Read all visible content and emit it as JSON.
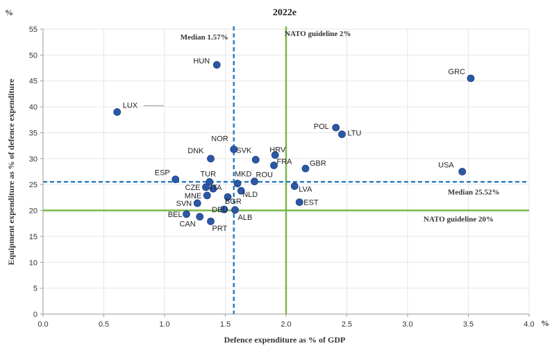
{
  "chart_data": {
    "type": "scatter",
    "title": "2022e",
    "xlabel": "Defence expenditure as % of GDP",
    "ylabel": "Equipment expenditure as % of defence expenditure",
    "x_unit": "%",
    "y_unit": "%",
    "xlim": [
      0,
      4
    ],
    "ylim": [
      0,
      55
    ],
    "x_ticks": [
      "0.0",
      "0.5",
      "1.0",
      "1.5",
      "2.0",
      "2.5",
      "3.0",
      "3.5",
      "4.0"
    ],
    "y_ticks": [
      "0",
      "5",
      "10",
      "15",
      "20",
      "25",
      "30",
      "35",
      "40",
      "45",
      "50",
      "55"
    ],
    "grid": true,
    "colors": {
      "points": "#2b58a6",
      "median": "#2e7fc1",
      "nato": "#7ab648"
    },
    "reference_lines": [
      {
        "orientation": "vertical",
        "value": 1.57,
        "label": "Median 1.57%",
        "style": "dashed"
      },
      {
        "orientation": "vertical",
        "value": 2.0,
        "label": "NATO guideline 2%",
        "style": "solid"
      },
      {
        "orientation": "horizontal",
        "value": 25.52,
        "label": "Median 25.52%",
        "style": "dashed"
      },
      {
        "orientation": "horizontal",
        "value": 20,
        "label": "NATO guideline 20%",
        "style": "solid"
      }
    ],
    "points": [
      {
        "label": "HUN",
        "x": 1.43,
        "y": 48.1
      },
      {
        "label": "GRC",
        "x": 3.52,
        "y": 45.5
      },
      {
        "label": "LUX",
        "x": 0.61,
        "y": 39.0
      },
      {
        "label": "POL",
        "x": 2.41,
        "y": 36.0
      },
      {
        "label": "LTU",
        "x": 2.46,
        "y": 34.7
      },
      {
        "label": "NOR",
        "x": 1.57,
        "y": 31.8
      },
      {
        "label": "DNK",
        "x": 1.38,
        "y": 30.0
      },
      {
        "label": "SVK",
        "x": 1.75,
        "y": 29.8
      },
      {
        "label": "HRV",
        "x": 1.91,
        "y": 30.7
      },
      {
        "label": "FRA",
        "x": 1.9,
        "y": 28.7
      },
      {
        "label": "GBR",
        "x": 2.16,
        "y": 28.1
      },
      {
        "label": "USA",
        "x": 3.45,
        "y": 27.5
      },
      {
        "label": "ESP",
        "x": 1.09,
        "y": 26.0
      },
      {
        "label": "TUR",
        "x": 1.37,
        "y": 25.5
      },
      {
        "label": "MKD",
        "x": 1.6,
        "y": 25.2
      },
      {
        "label": "ROU",
        "x": 1.74,
        "y": 25.6
      },
      {
        "label": "CZE",
        "x": 1.34,
        "y": 24.5
      },
      {
        "label": "ITA",
        "x": 1.4,
        "y": 24.2
      },
      {
        "label": "LVA",
        "x": 2.07,
        "y": 24.7
      },
      {
        "label": "NLD",
        "x": 1.63,
        "y": 23.8
      },
      {
        "label": "MNE",
        "x": 1.35,
        "y": 22.9
      },
      {
        "label": "BGR",
        "x": 1.52,
        "y": 22.6
      },
      {
        "label": "EST",
        "x": 2.11,
        "y": 21.6
      },
      {
        "label": "SVN",
        "x": 1.27,
        "y": 21.4
      },
      {
        "label": "DEU",
        "x": 1.49,
        "y": 20.2
      },
      {
        "label": "ALB",
        "x": 1.58,
        "y": 20.1
      },
      {
        "label": "BEL",
        "x": 1.18,
        "y": 19.3
      },
      {
        "label": "CAN",
        "x": 1.29,
        "y": 18.8
      },
      {
        "label": "PRT",
        "x": 1.38,
        "y": 17.9
      }
    ]
  }
}
